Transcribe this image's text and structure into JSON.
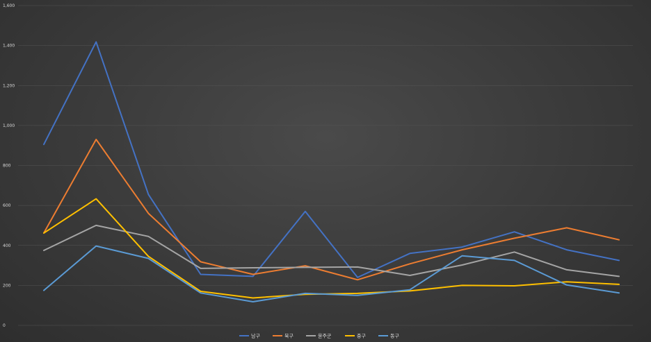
{
  "chart_data": {
    "type": "line",
    "title": "",
    "xlabel": "",
    "ylabel": "",
    "ylim": [
      0,
      1600
    ],
    "y_ticks": [
      "0",
      "200",
      "400",
      "600",
      "800",
      "1,000",
      "1,200",
      "1,400",
      "1,600"
    ],
    "y_tick_values": [
      0,
      200,
      400,
      600,
      800,
      1000,
      1200,
      1400,
      1600
    ],
    "x_count": 12,
    "grid": true,
    "legend_position": "bottom",
    "series": [
      {
        "name": "남구",
        "color": "#4472C4",
        "values": [
          905,
          1418,
          655,
          255,
          245,
          570,
          240,
          360,
          392,
          468,
          378,
          325
        ]
      },
      {
        "name": "북구",
        "color": "#ED7D31",
        "values": [
          462,
          930,
          560,
          318,
          255,
          298,
          228,
          308,
          378,
          436,
          488,
          428
        ]
      },
      {
        "name": "울주군",
        "color": "#A5A5A5",
        "values": [
          375,
          500,
          445,
          285,
          288,
          290,
          292,
          250,
          302,
          367,
          278,
          245
        ]
      },
      {
        "name": "중구",
        "color": "#FFC000",
        "values": [
          462,
          633,
          345,
          170,
          137,
          155,
          160,
          172,
          200,
          198,
          218,
          205
        ]
      },
      {
        "name": "동구",
        "color": "#5B9BD5",
        "values": [
          175,
          397,
          335,
          162,
          118,
          160,
          150,
          178,
          348,
          325,
          202,
          162
        ]
      }
    ]
  }
}
